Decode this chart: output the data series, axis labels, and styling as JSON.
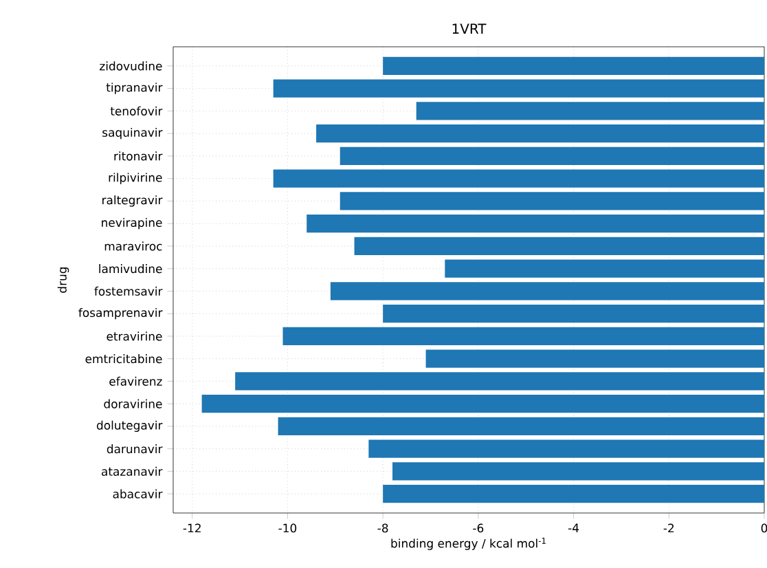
{
  "chart_data": {
    "type": "bar",
    "orientation": "horizontal",
    "title": "1VRT",
    "xlabel": "binding energy / kcal  mol$^{-1}$",
    "ylabel": "drug",
    "categories": [
      "zidovudine",
      "tipranavir",
      "tenofovir",
      "saquinavir",
      "ritonavir",
      "rilpivirine",
      "raltegravir",
      "nevirapine",
      "maraviroc",
      "lamivudine",
      "fostemsavir",
      "fosamprenavir",
      "etravirine",
      "emtricitabine",
      "efavirenz",
      "doravirine",
      "dolutegavir",
      "darunavir",
      "atazanavir",
      "abacavir"
    ],
    "values": [
      -8.0,
      -10.3,
      -7.3,
      -9.4,
      -8.9,
      -10.3,
      -8.9,
      -9.6,
      -8.6,
      -6.7,
      -9.1,
      -8.0,
      -10.1,
      -7.1,
      -11.1,
      -11.8,
      -10.2,
      -8.3,
      -7.8,
      -8.0
    ],
    "color": "#1f77b4",
    "xlim": [
      -12.4,
      0
    ],
    "xticks": [
      -12,
      -10,
      -8,
      -6,
      -4,
      -2,
      0
    ],
    "grid": true
  }
}
